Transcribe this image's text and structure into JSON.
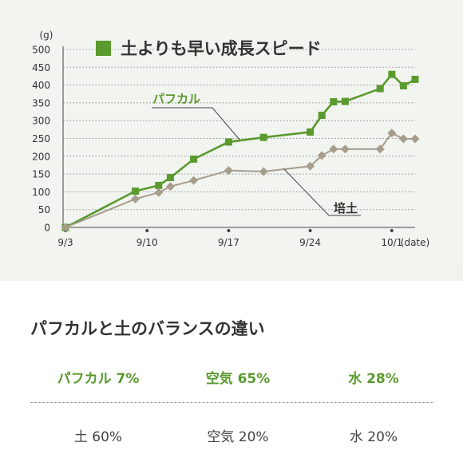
{
  "chart_data": {
    "type": "line",
    "title": "土よりも早い成長スピード",
    "y_unit": "(g)",
    "xlabel": "(date)",
    "ylim": [
      0,
      500
    ],
    "yticks": [
      0,
      50,
      100,
      150,
      200,
      250,
      300,
      350,
      400,
      450,
      500
    ],
    "xticks": [
      "9/3",
      "9/10",
      "9/17",
      "9/24",
      "10/1"
    ],
    "grid": true,
    "legend_position": "top",
    "series": [
      {
        "name": "パフカル",
        "color": "#5a9a2e",
        "marker": "square",
        "points": [
          {
            "x": "2023-09-03",
            "y": 0
          },
          {
            "x": "2023-09-09",
            "y": 102
          },
          {
            "x": "2023-09-11",
            "y": 118
          },
          {
            "x": "2023-09-12",
            "y": 140
          },
          {
            "x": "2023-09-14",
            "y": 192
          },
          {
            "x": "2023-09-17",
            "y": 240
          },
          {
            "x": "2023-09-20",
            "y": 253
          },
          {
            "x": "2023-09-24",
            "y": 268
          },
          {
            "x": "2023-09-25",
            "y": 315
          },
          {
            "x": "2023-09-26",
            "y": 353
          },
          {
            "x": "2023-09-27",
            "y": 354
          },
          {
            "x": "2023-09-30",
            "y": 390
          },
          {
            "x": "2023-10-01",
            "y": 430
          },
          {
            "x": "2023-10-02",
            "y": 398
          },
          {
            "x": "2023-10-03",
            "y": 416
          }
        ]
      },
      {
        "name": "培土",
        "color": "#a69d8c",
        "marker": "diamond",
        "points": [
          {
            "x": "2023-09-03",
            "y": 0
          },
          {
            "x": "2023-09-09",
            "y": 80
          },
          {
            "x": "2023-09-11",
            "y": 98
          },
          {
            "x": "2023-09-12",
            "y": 115
          },
          {
            "x": "2023-09-14",
            "y": 132
          },
          {
            "x": "2023-09-17",
            "y": 160
          },
          {
            "x": "2023-09-20",
            "y": 157
          },
          {
            "x": "2023-09-24",
            "y": 172
          },
          {
            "x": "2023-09-25",
            "y": 202
          },
          {
            "x": "2023-09-26",
            "y": 220
          },
          {
            "x": "2023-09-27",
            "y": 220
          },
          {
            "x": "2023-09-30",
            "y": 220
          },
          {
            "x": "2023-10-01",
            "y": 265
          },
          {
            "x": "2023-10-02",
            "y": 249
          },
          {
            "x": "2023-10-03",
            "y": 249
          }
        ]
      }
    ]
  },
  "comparison": {
    "title": "パフカルと土のバランスの違い",
    "puffcal": [
      "パフカル 7%",
      "空気 65%",
      "水 28%"
    ],
    "soil": [
      "土 60%",
      "空気 20%",
      "水 20%"
    ]
  }
}
